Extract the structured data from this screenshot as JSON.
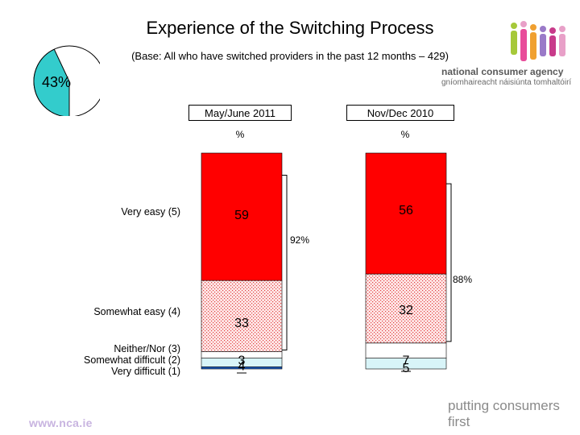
{
  "chart_data": {
    "type": "bar",
    "stacked": true,
    "title": "Experience of the Switching Process",
    "subtitle": "(Base: All who have switched providers in the past 12 months – 429)",
    "categories": [
      "May/June 2011",
      "Nov/Dec 2010"
    ],
    "unit_label": "%",
    "series": [
      {
        "name": "Very easy (5)",
        "values": [
          59,
          56
        ],
        "color": "#ff0000"
      },
      {
        "name": "Somewhat easy (4)",
        "values": [
          33,
          32
        ],
        "color": "#ffe8e8",
        "pattern": "dotted-red"
      },
      {
        "name": "Neither/Nor (3)",
        "values": [
          3,
          7
        ],
        "color": "#ffffff"
      },
      {
        "name": "Somewhat difficult (2)",
        "values": [
          4,
          5
        ],
        "color": "#d8f4f8"
      },
      {
        "name": "Very difficult (1)",
        "values": [
          1,
          0
        ],
        "color": "#1f5fbf"
      }
    ],
    "net_easy": [
      92,
      88
    ],
    "net_easy_labels": [
      "92%",
      "88%"
    ],
    "row_labels": [
      "Very easy (5)",
      "Somewhat easy (4)",
      "Neither/Nor (3)\nSomewhat difficult (2)\nVery difficult (1)"
    ],
    "ylim": [
      0,
      100
    ],
    "grid": false,
    "legend": "none"
  },
  "pie": {
    "label": "43%",
    "value": 43,
    "fill_color": "#33cccc"
  },
  "logo": {
    "line1": "national consumer agency",
    "line2": "gníomhaireacht náisiúnta tomhaltóirí"
  },
  "footer": {
    "url": "www.nca.ie",
    "tagline": "putting consumers first"
  }
}
